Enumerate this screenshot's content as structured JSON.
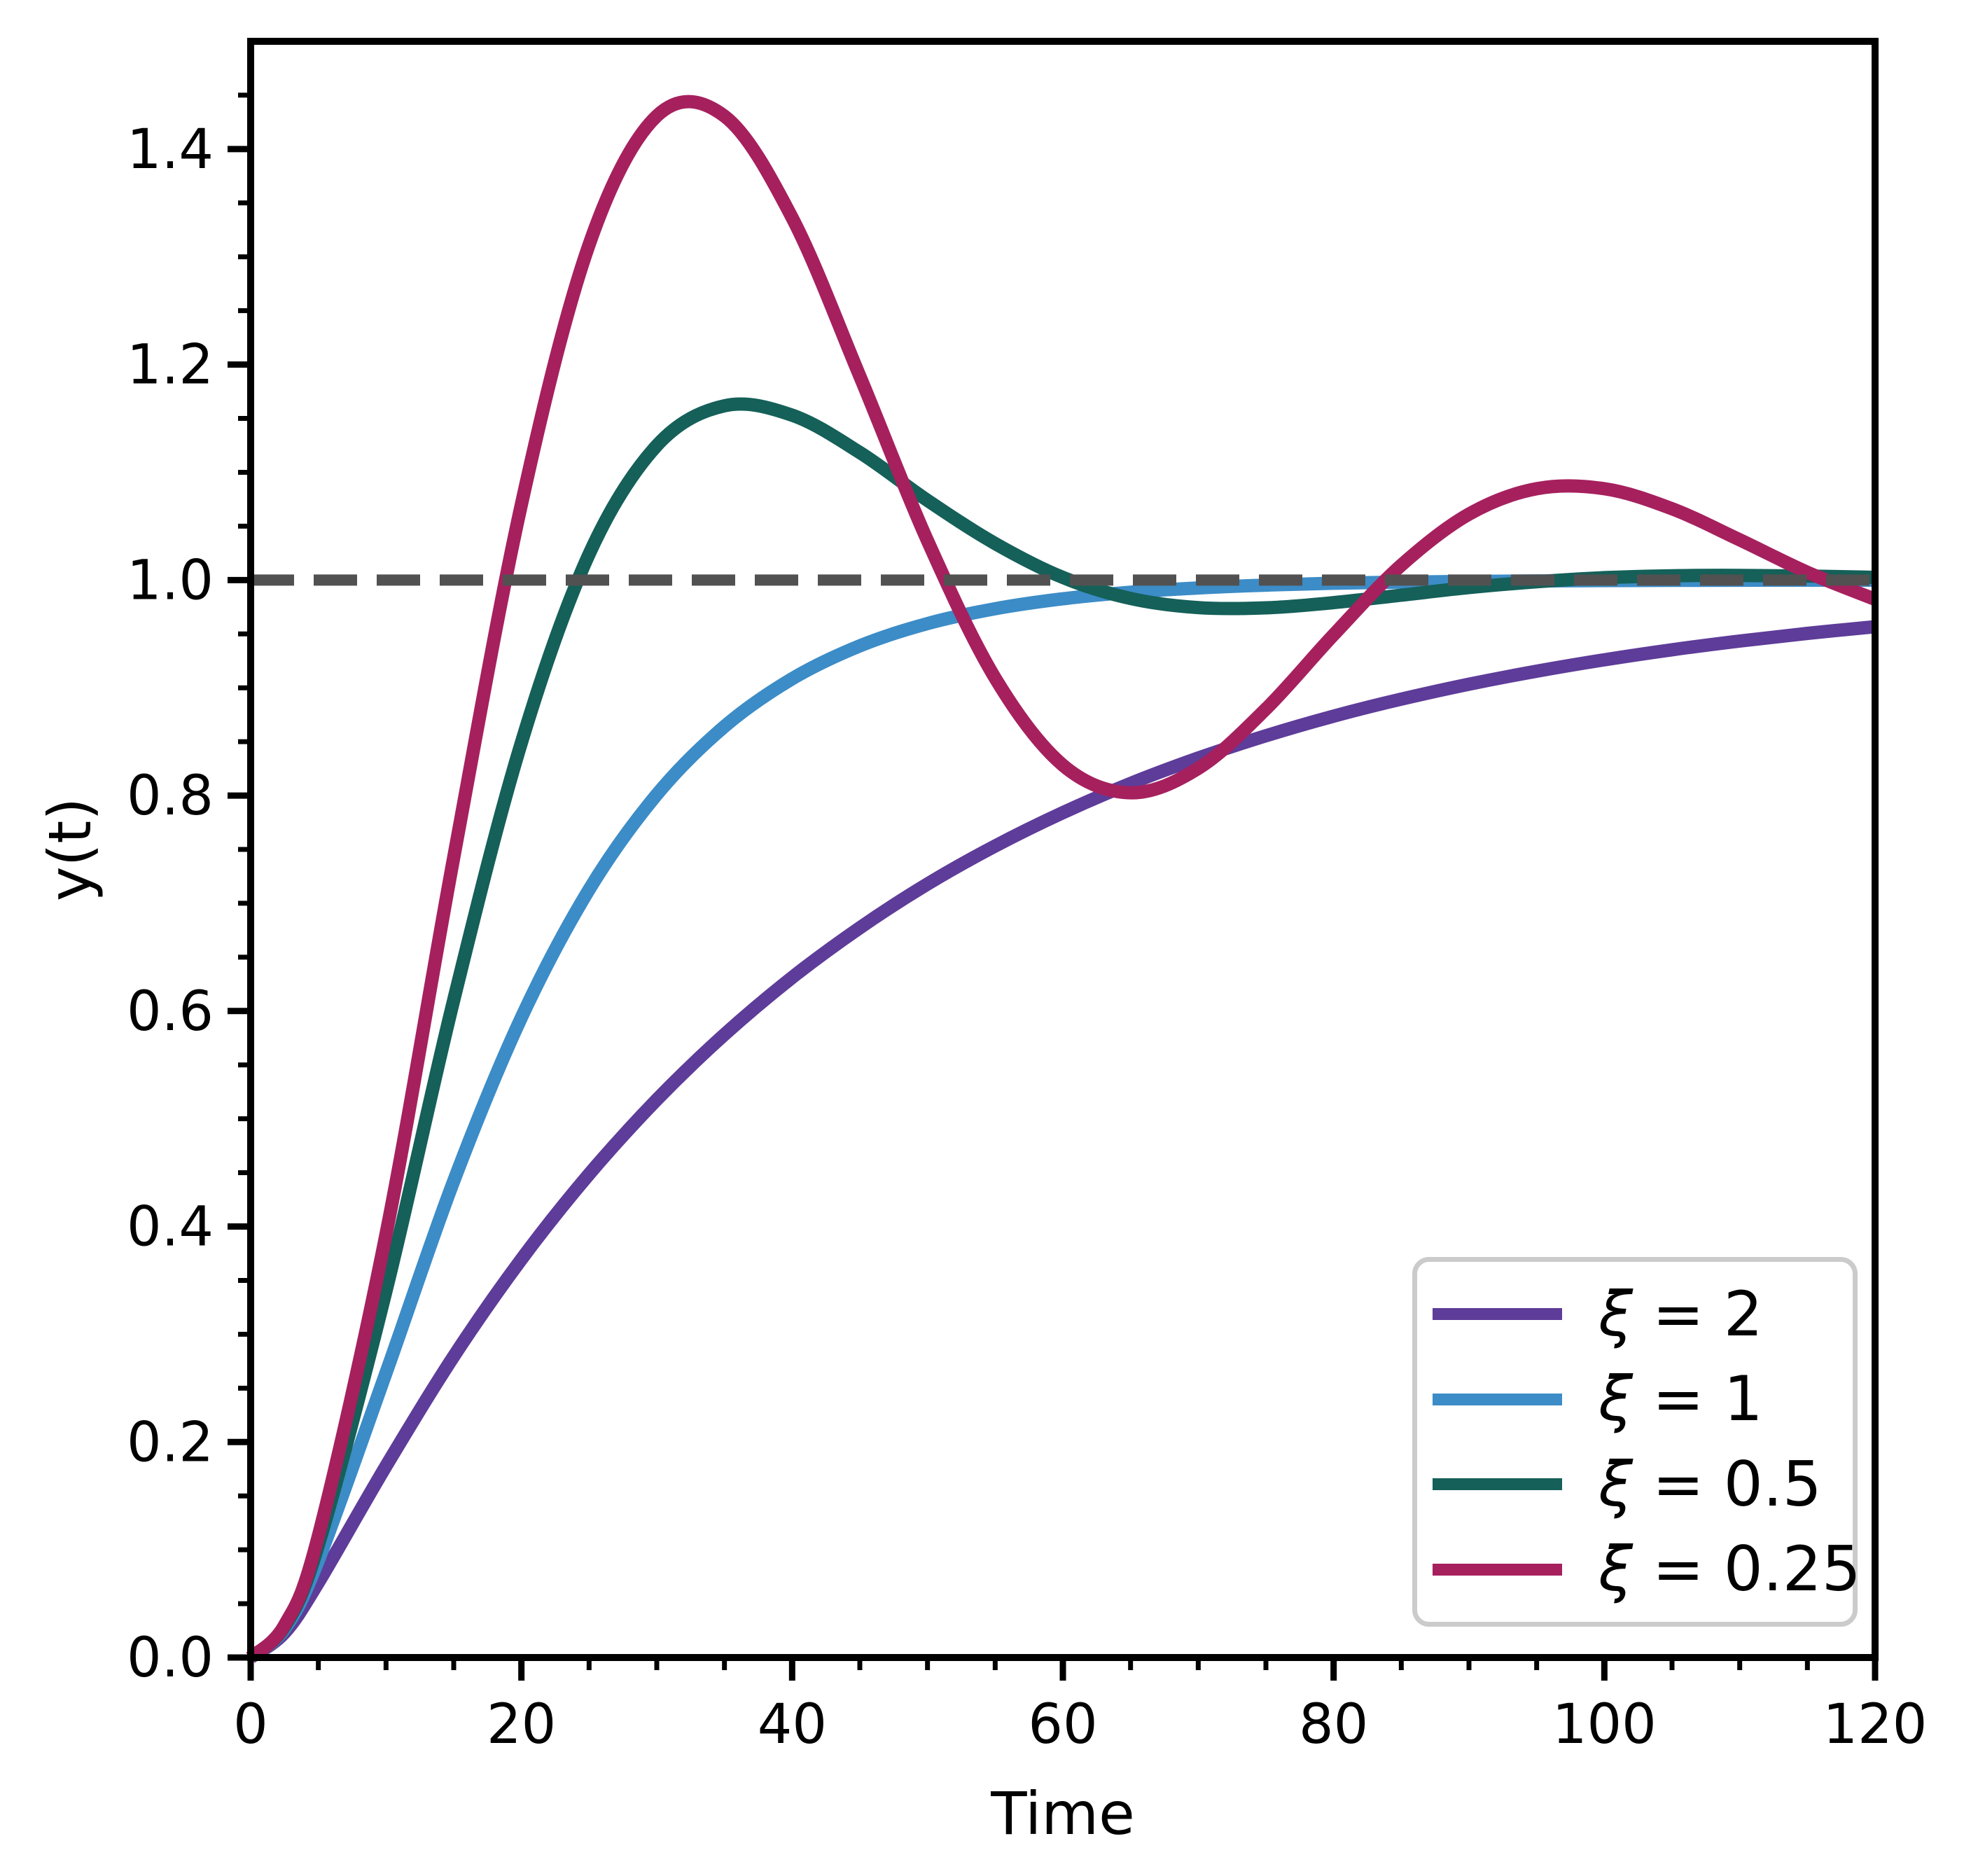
{
  "chart_data": {
    "type": "line",
    "title": "",
    "xlabel": "Time",
    "ylabel": "y(t)",
    "xlim": [
      0,
      120
    ],
    "ylim": [
      0,
      1.5
    ],
    "grid": false,
    "x_ticks_major": [
      0,
      20,
      40,
      60,
      80,
      100,
      120
    ],
    "x_tick_labels": [
      "0",
      "20",
      "40",
      "60",
      "80",
      "100",
      "120"
    ],
    "x_minor_step": 5,
    "y_ticks_major": [
      0.0,
      0.2,
      0.4,
      0.6,
      0.8,
      1.0,
      1.2,
      1.4
    ],
    "y_tick_labels": [
      "0.0",
      "0.2",
      "0.4",
      "0.6",
      "0.8",
      "1.0",
      "1.2",
      "1.4"
    ],
    "y_minor_step": 0.05,
    "reference_line": {
      "y": 1.0,
      "style": "dashed",
      "color": "#515151"
    },
    "legend_position": "lower right",
    "x": [
      0,
      2.5,
      5,
      10,
      15,
      20,
      25,
      30,
      35,
      40,
      45,
      50,
      55,
      60,
      65,
      70,
      75,
      80,
      85,
      90,
      95,
      100,
      105,
      110,
      115,
      120
    ],
    "series": [
      {
        "name": "ξ = 2",
        "xi": 2,
        "color": "#5E3C99",
        "values": [
          0,
          0.0229,
          0.0696,
          0.1777,
          0.2795,
          0.3696,
          0.4486,
          0.5177,
          0.5782,
          0.6311,
          0.6773,
          0.7179,
          0.7532,
          0.7841,
          0.8112,
          0.8348,
          0.8555,
          0.8737,
          0.8895,
          0.9033,
          0.9154,
          0.926,
          0.9353,
          0.9434,
          0.9505,
          0.9567
        ]
      },
      {
        "name": "ξ = 1",
        "xi": 1,
        "color": "#3C8CC7",
        "values": [
          0,
          0.0265,
          0.0902,
          0.2642,
          0.4422,
          0.594,
          0.7127,
          0.8009,
          0.8641,
          0.9084,
          0.9389,
          0.9596,
          0.9734,
          0.9826,
          0.9887,
          0.9927,
          0.9953,
          0.997,
          0.9981,
          0.9988,
          0.9992,
          0.9995,
          0.9997,
          0.9998,
          0.9999,
          0.9999
        ]
      },
      {
        "name": "ξ = 0.5",
        "xi": 0.5,
        "color": "#156059",
        "values": [
          0,
          0.0286,
          0.1044,
          0.3403,
          0.6102,
          0.8492,
          1.024,
          1.1248,
          1.1617,
          1.153,
          1.1184,
          1.0739,
          1.0339,
          1.0024,
          0.9829,
          0.9744,
          0.9742,
          0.979,
          0.986,
          0.993,
          0.9984,
          1.0022,
          1.004,
          1.0043,
          1.0037,
          1.0025
        ]
      },
      {
        "name": "ξ = 0.25",
        "xi": 0.25,
        "color": "#A6205E",
        "values": [
          0,
          0.0299,
          0.1128,
          0.3929,
          0.7425,
          1.0703,
          1.3112,
          1.4307,
          1.4306,
          1.3363,
          1.1892,
          1.0365,
          0.909,
          0.8282,
          0.8026,
          0.8252,
          0.8804,
          0.9492,
          1.0138,
          1.0612,
          1.0848,
          1.0848,
          1.0662,
          1.0373,
          1.0072,
          0.9821
        ]
      }
    ]
  }
}
